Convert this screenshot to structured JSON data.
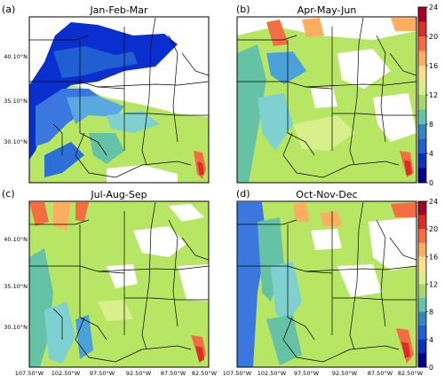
{
  "panels": [
    {
      "letter": "(a)",
      "title": "Jan-Feb-Mar"
    },
    {
      "letter": "(b)",
      "title": "Apr-May-Jun"
    },
    {
      "letter": "(c)",
      "title": "Jul-Aug-Sep"
    },
    {
      "letter": "(d)",
      "title": "Oct-Nov-Dec"
    }
  ],
  "lat_labels": [
    "40.10°N",
    "35.10°N",
    "30.10°N"
  ],
  "lon_labels": [
    "107.50°W",
    "102.50°W",
    "97.50°W",
    "92.50°W",
    "87.50°W",
    "82.50°W"
  ],
  "colorbar": {
    "ticks": [
      "24",
      "20",
      "16",
      "12",
      "8",
      "4",
      "0"
    ],
    "colors": [
      "#a50026",
      "#d73027",
      "#f46d43",
      "#fdae61",
      "#fee08b",
      "#d9ef8b",
      "#a6d96a",
      "#66c2a5",
      "#3288bd",
      "#1f5fd1",
      "#0b2fbf",
      "#00008b"
    ]
  }
}
